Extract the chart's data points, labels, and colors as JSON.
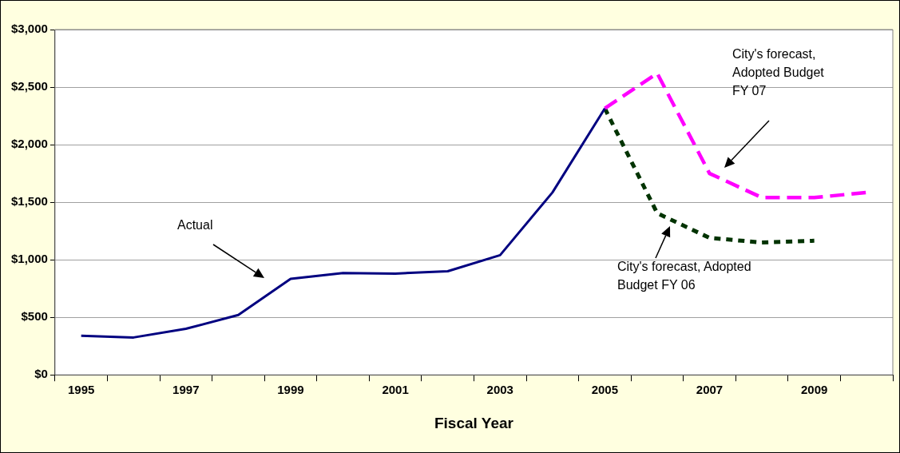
{
  "chart_data": {
    "type": "line",
    "xlabel": "Fiscal Year",
    "categories": [
      "1995",
      null,
      "1997",
      null,
      "1999",
      null,
      "2001",
      null,
      "2003",
      null,
      "2005",
      null,
      "2007",
      null,
      "2009",
      null
    ],
    "series": [
      {
        "color": "#000080",
        "line_style": "solid",
        "values": [
          340,
          325,
          400,
          520,
          835,
          885,
          880,
          900,
          1040,
          1585,
          2315,
          null,
          null,
          null,
          null,
          null
        ]
      },
      {
        "color": "#ff00ff",
        "line_style": "dashed",
        "values": [
          null,
          null,
          null,
          null,
          null,
          null,
          null,
          null,
          null,
          null,
          2315,
          2620,
          1750,
          1540,
          1540,
          1585
        ]
      },
      {
        "color": "#003300",
        "line_style": "dotted",
        "values": [
          null,
          null,
          null,
          null,
          null,
          null,
          null,
          null,
          null,
          null,
          2315,
          1405,
          1190,
          1150,
          1165,
          null
        ]
      }
    ],
    "ylim": [
      0,
      3000
    ],
    "yticks": [
      {
        "value": 0,
        "label": "$0"
      },
      {
        "value": 500,
        "label": "$500"
      },
      {
        "value": 1000,
        "label": "$1,000"
      },
      {
        "value": 1500,
        "label": "$1,500"
      },
      {
        "value": 2000,
        "label": "$2,000"
      },
      {
        "value": 2500,
        "label": "$2,500"
      },
      {
        "value": 3000,
        "label": "$3,000"
      }
    ],
    "grid": "y",
    "legend": false,
    "marker": "none",
    "annotations": [
      "Actual",
      "City's forecast, Adopted Budget FY 07",
      "City's forecast, Adopted Budget FY 06"
    ]
  }
}
